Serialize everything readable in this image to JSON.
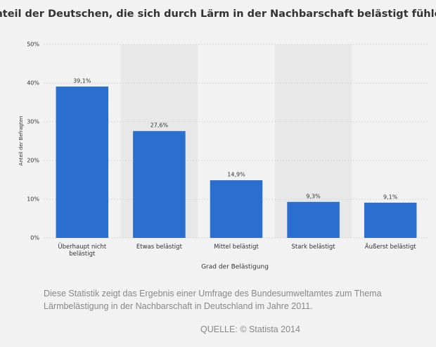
{
  "chart_data": {
    "type": "bar",
    "title": "Anteil der Deutschen, die sich durch Lärm in der Nachbarschaft belästigt fühlen",
    "categories": [
      "Überhaupt nicht belästigt",
      "Etwas belästigt",
      "Mittel belästigt",
      "Stark belästigt",
      "Äußerst belästigt"
    ],
    "values": [
      39.1,
      27.6,
      14.9,
      9.3,
      9.1
    ],
    "value_labels": [
      "39,1%",
      "27,6%",
      "14,9%",
      "9,3%",
      "9,1%"
    ],
    "color": "#2a6fcf",
    "ylim": [
      0,
      50
    ],
    "yticks": [
      {
        "value": 0,
        "label": "0%"
      },
      {
        "value": 10,
        "label": "10%"
      },
      {
        "value": 20,
        "label": "20%"
      },
      {
        "value": 30,
        "label": "30%"
      },
      {
        "value": 40,
        "label": "40%"
      },
      {
        "value": 50,
        "label": "50%"
      }
    ],
    "grid": true,
    "y_label": "Anteil der Befragten",
    "x_label": "Grad der Belästigung"
  },
  "description": [
    "Diese Statistik zeigt das Ergebnis einer Umfrage des Bundesumweltamtes zum Thema",
    "Lärmbelästigung in der Nachbarschaft in Deutschland im Jahre 2011."
  ],
  "source": "QUELLE: © Statista 2014"
}
